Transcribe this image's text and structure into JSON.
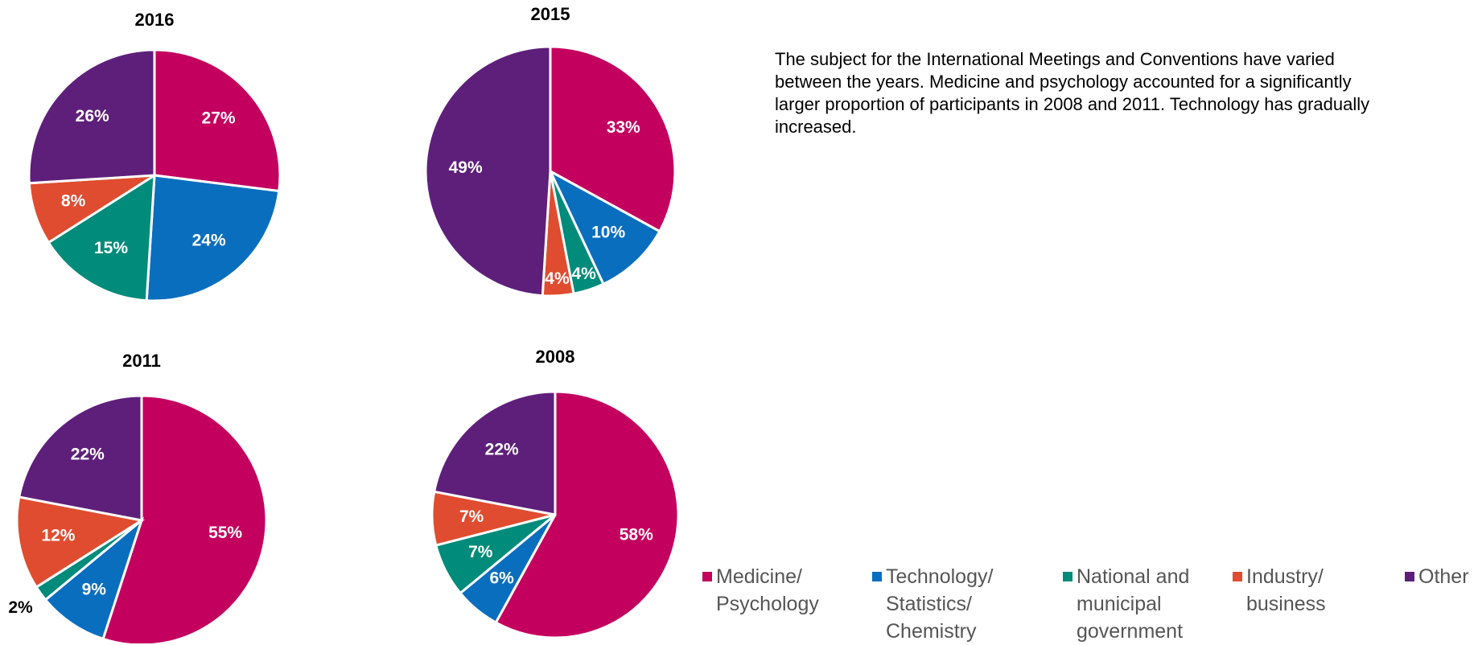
{
  "note": "The subject for the International Meetings and Conventions have varied between the years. Medicine and psychology accounted for a significantly larger proportion of participants in 2008 and 2011. Technology has gradually increased.",
  "legend": {
    "categories": [
      "Medicine/ Psychology",
      "Technology/ Statistics/ Chemistry",
      "National and municipal government",
      "Industry/ business",
      "Other"
    ],
    "colors": [
      "#c4005f",
      "#0a6ebe",
      "#008b7a",
      "#e04c2f",
      "#5e1f7a"
    ]
  },
  "chart_data": [
    {
      "type": "pie",
      "title": "2016",
      "values": [
        27,
        24,
        15,
        8,
        26
      ],
      "value_labels": [
        "27%",
        "24%",
        "15%",
        "8%",
        "26%"
      ]
    },
    {
      "type": "pie",
      "title": "2015",
      "values": [
        33,
        10,
        4,
        4,
        49
      ],
      "value_labels": [
        "33%",
        "10%",
        "4%",
        "4%",
        "49%"
      ]
    },
    {
      "type": "pie",
      "title": "2011",
      "values": [
        55,
        9,
        2,
        12,
        22
      ],
      "value_labels": [
        "55%",
        "9%",
        "2%",
        "12%",
        "22%"
      ]
    },
    {
      "type": "pie",
      "title": "2008",
      "values": [
        58,
        6,
        7,
        7,
        22
      ],
      "value_labels": [
        "58%",
        "6%",
        "7%",
        "7%",
        "22%"
      ]
    }
  ]
}
